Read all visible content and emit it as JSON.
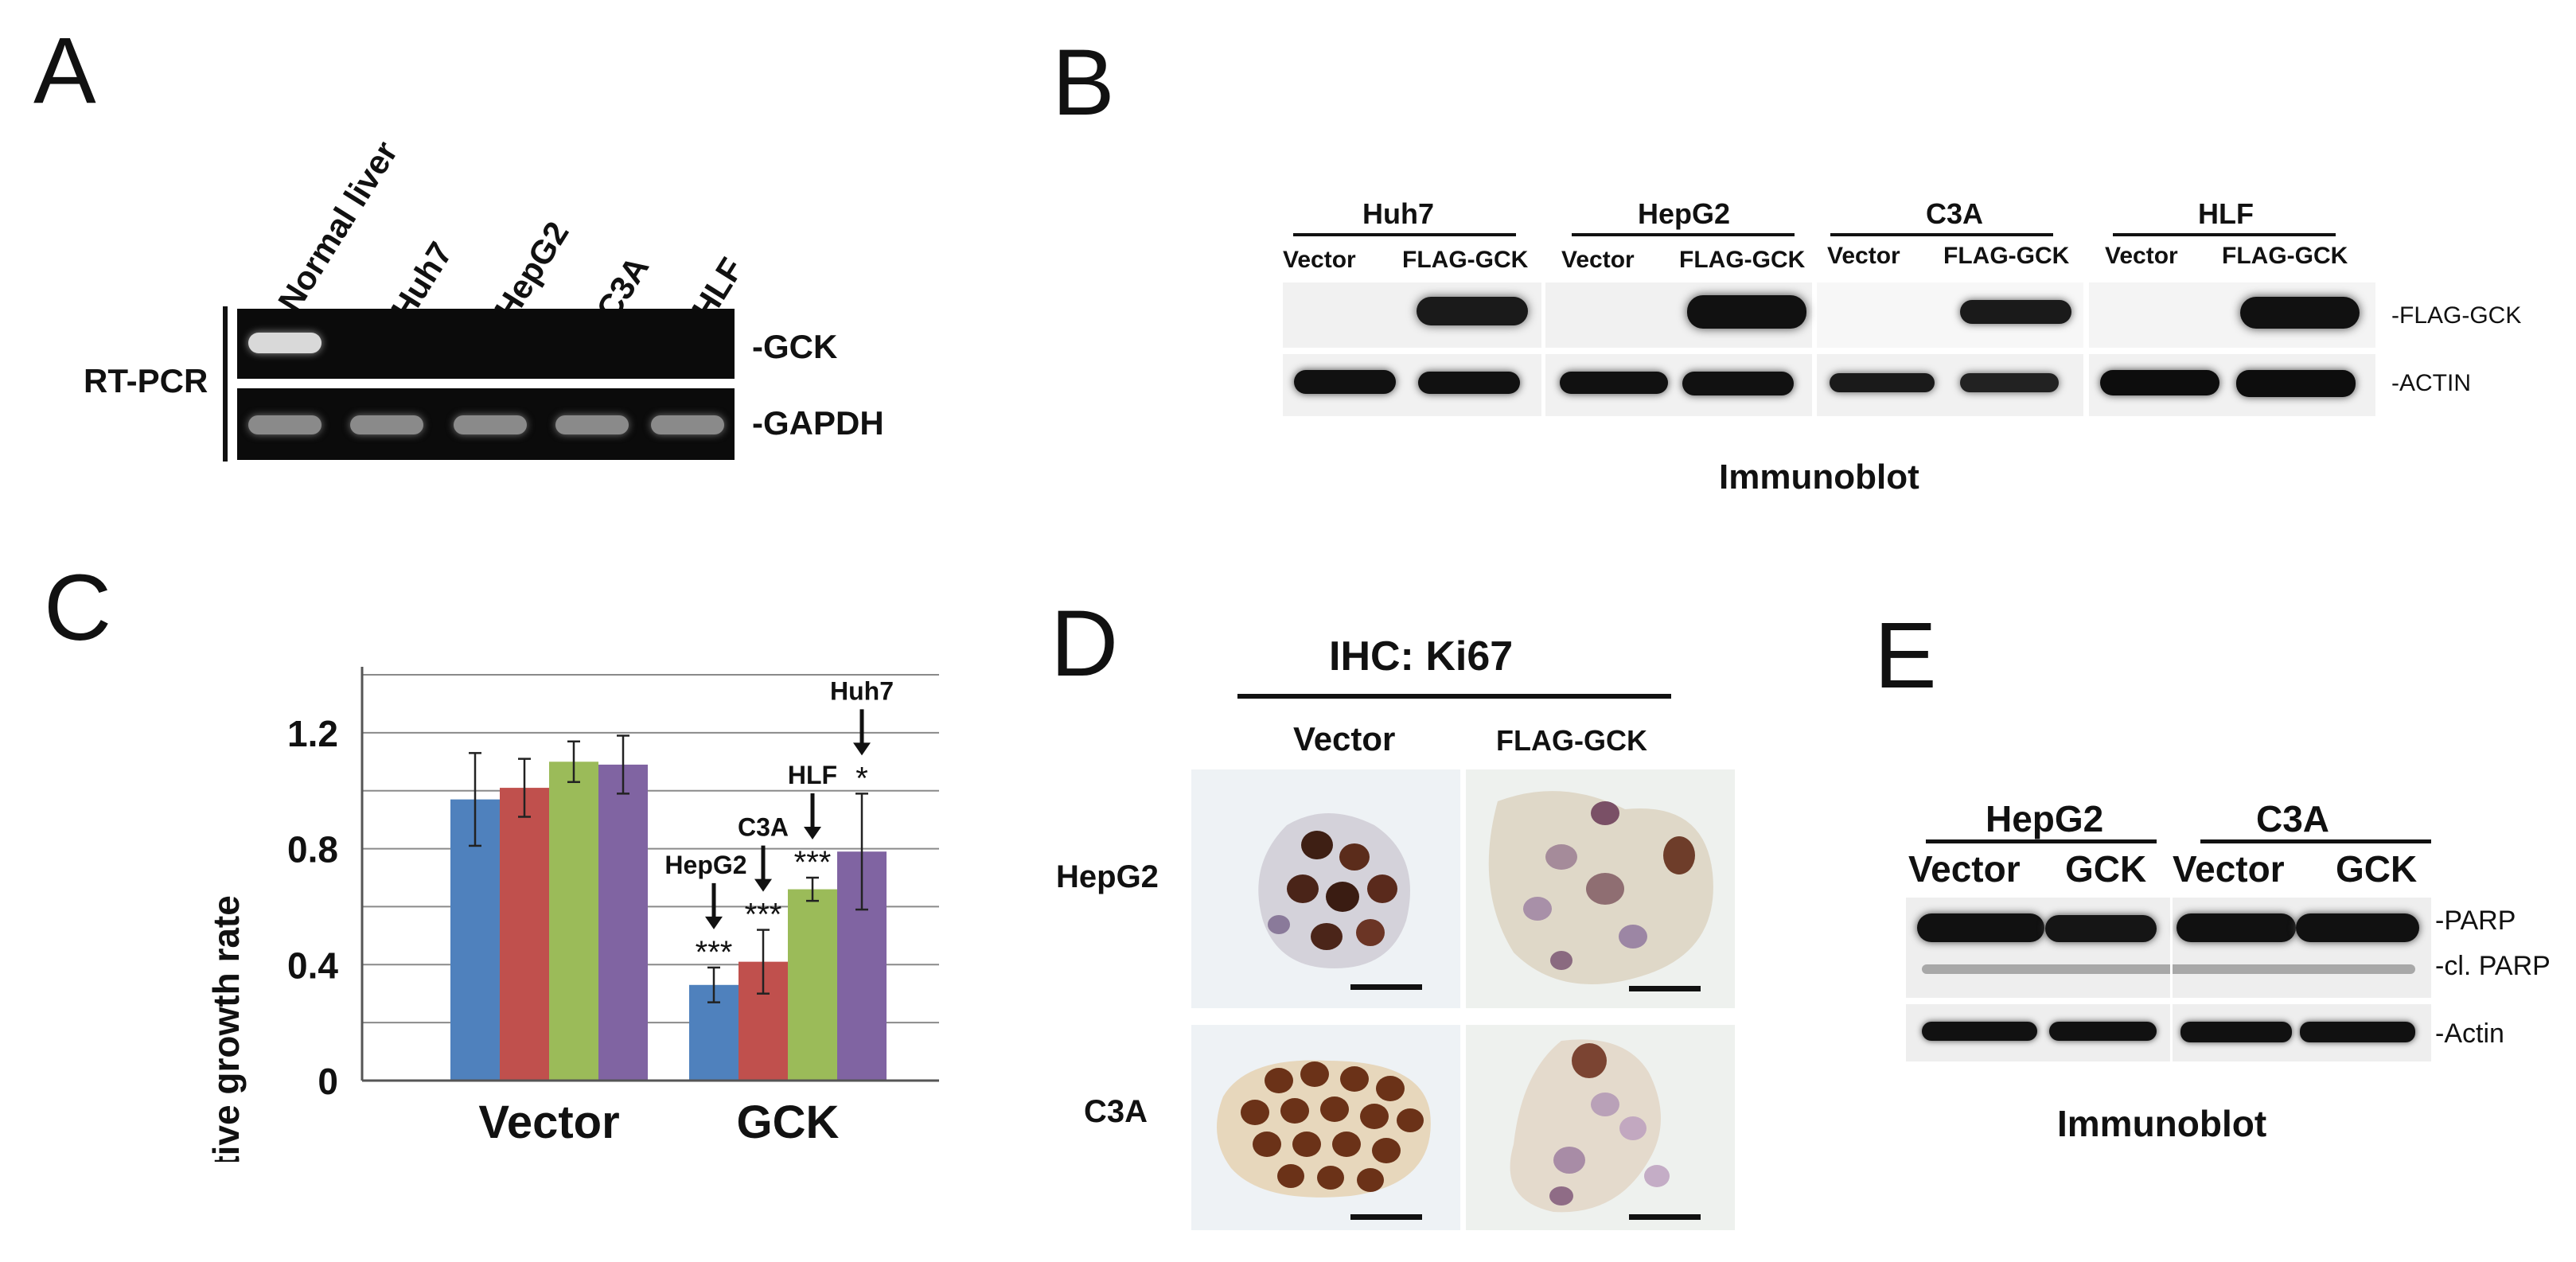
{
  "panelA": {
    "label": "A",
    "lanes": [
      "Normal liver",
      "Huh7",
      "HepG2",
      "C3A",
      "HLF"
    ],
    "side_label": "RT-PCR",
    "bands": [
      "-GCK",
      "-GAPDH"
    ]
  },
  "panelB": {
    "label": "B",
    "groups": [
      {
        "name": "Huh7",
        "lanes": [
          "Vector",
          "FLAG-GCK"
        ]
      },
      {
        "name": "HepG2",
        "lanes": [
          "Vector",
          "FLAG-GCK"
        ]
      },
      {
        "name": "C3A",
        "lanes": [
          "Vector",
          "FLAG-GCK"
        ]
      },
      {
        "name": "HLF",
        "lanes": [
          "Vector",
          "FLAG-GCK"
        ]
      }
    ],
    "bands": [
      "-FLAG-GCK",
      "-ACTIN"
    ],
    "caption": "Immunoblot"
  },
  "panelC": {
    "label": "C",
    "chart_data": {
      "type": "bar",
      "categories": [
        "Vector",
        "GCK"
      ],
      "ylabel": "Relative growth rate",
      "ylim": [
        0,
        1.4
      ],
      "yticks": [
        "0",
        "0.4",
        "0.8",
        "1.2"
      ],
      "grid": true,
      "series": [
        {
          "name": "HepG2",
          "color": "#4f81bd",
          "values": [
            0.97,
            0.33
          ],
          "errors": [
            0.16,
            0.06
          ]
        },
        {
          "name": "C3A",
          "color": "#c0504d",
          "values": [
            1.01,
            0.41
          ],
          "errors": [
            0.1,
            0.11
          ]
        },
        {
          "name": "HLF",
          "color": "#9bbb59",
          "values": [
            1.1,
            0.66
          ],
          "errors": [
            0.07,
            0.04
          ]
        },
        {
          "name": "Huh7",
          "color": "#8064a2",
          "values": [
            1.09,
            0.79
          ],
          "errors": [
            0.1,
            0.2
          ]
        }
      ],
      "annotations": [
        {
          "series": "HepG2",
          "label": "HepG2",
          "sig": "***"
        },
        {
          "series": "C3A",
          "label": "C3A",
          "sig": "***"
        },
        {
          "series": "HLF",
          "label": "HLF",
          "sig": "***"
        },
        {
          "series": "Huh7",
          "label": "Huh7",
          "sig": "*"
        }
      ]
    }
  },
  "panelD": {
    "label": "D",
    "title": "IHC: Ki67",
    "columns": [
      "Vector",
      "FLAG-GCK"
    ],
    "rows": [
      "HepG2",
      "C3A"
    ]
  },
  "panelE": {
    "label": "E",
    "groups": [
      {
        "name": "HepG2",
        "lanes": [
          "Vector",
          "GCK"
        ]
      },
      {
        "name": "C3A",
        "lanes": [
          "Vector",
          "GCK"
        ]
      }
    ],
    "bands": [
      "-PARP",
      "-cl. PARP",
      "-Actin"
    ],
    "caption": "Immunoblot"
  }
}
